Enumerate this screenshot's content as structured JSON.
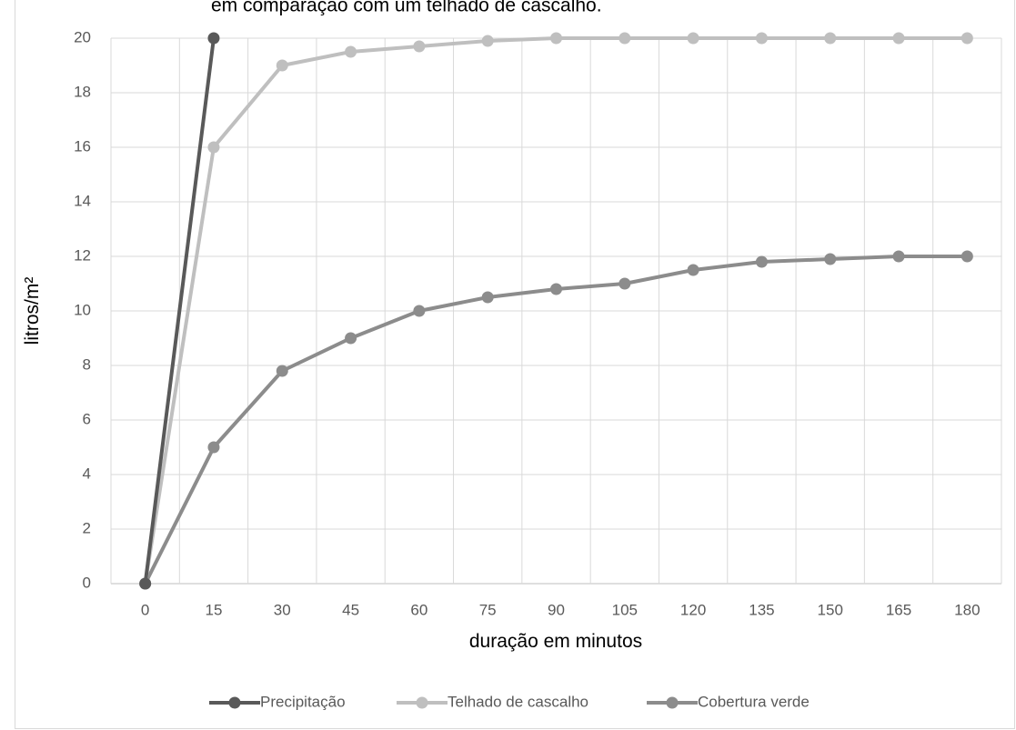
{
  "chart_data": {
    "type": "line",
    "title": "em comparação com um telhado de cascalho.",
    "xlabel": "duração em minutos",
    "ylabel": "litros/m²",
    "x": [
      0,
      15,
      30,
      45,
      60,
      75,
      90,
      105,
      120,
      135,
      150,
      165,
      180
    ],
    "ylim": [
      0,
      20
    ],
    "yticks": [
      0,
      2,
      4,
      6,
      8,
      10,
      12,
      14,
      16,
      18,
      20
    ],
    "grid": true,
    "legend_position": "bottom",
    "series": [
      {
        "name": "Precipitação",
        "color": "#595959",
        "x": [
          0,
          15
        ],
        "values": [
          0,
          20
        ]
      },
      {
        "name": "Telhado de cascalho",
        "color": "#bfbfbf",
        "x": [
          0,
          15,
          30,
          45,
          60,
          75,
          90,
          105,
          120,
          135,
          150,
          165,
          180
        ],
        "values": [
          0,
          16,
          19,
          19.5,
          19.7,
          19.9,
          20,
          20,
          20,
          20,
          20,
          20,
          20
        ]
      },
      {
        "name": "Cobertura verde",
        "color": "#8c8c8c",
        "x": [
          0,
          15,
          30,
          45,
          60,
          75,
          90,
          105,
          120,
          135,
          150,
          165,
          180
        ],
        "values": [
          0,
          5,
          7.8,
          9,
          10,
          10.5,
          10.8,
          11,
          11.5,
          11.8,
          11.9,
          12,
          12
        ]
      }
    ]
  }
}
